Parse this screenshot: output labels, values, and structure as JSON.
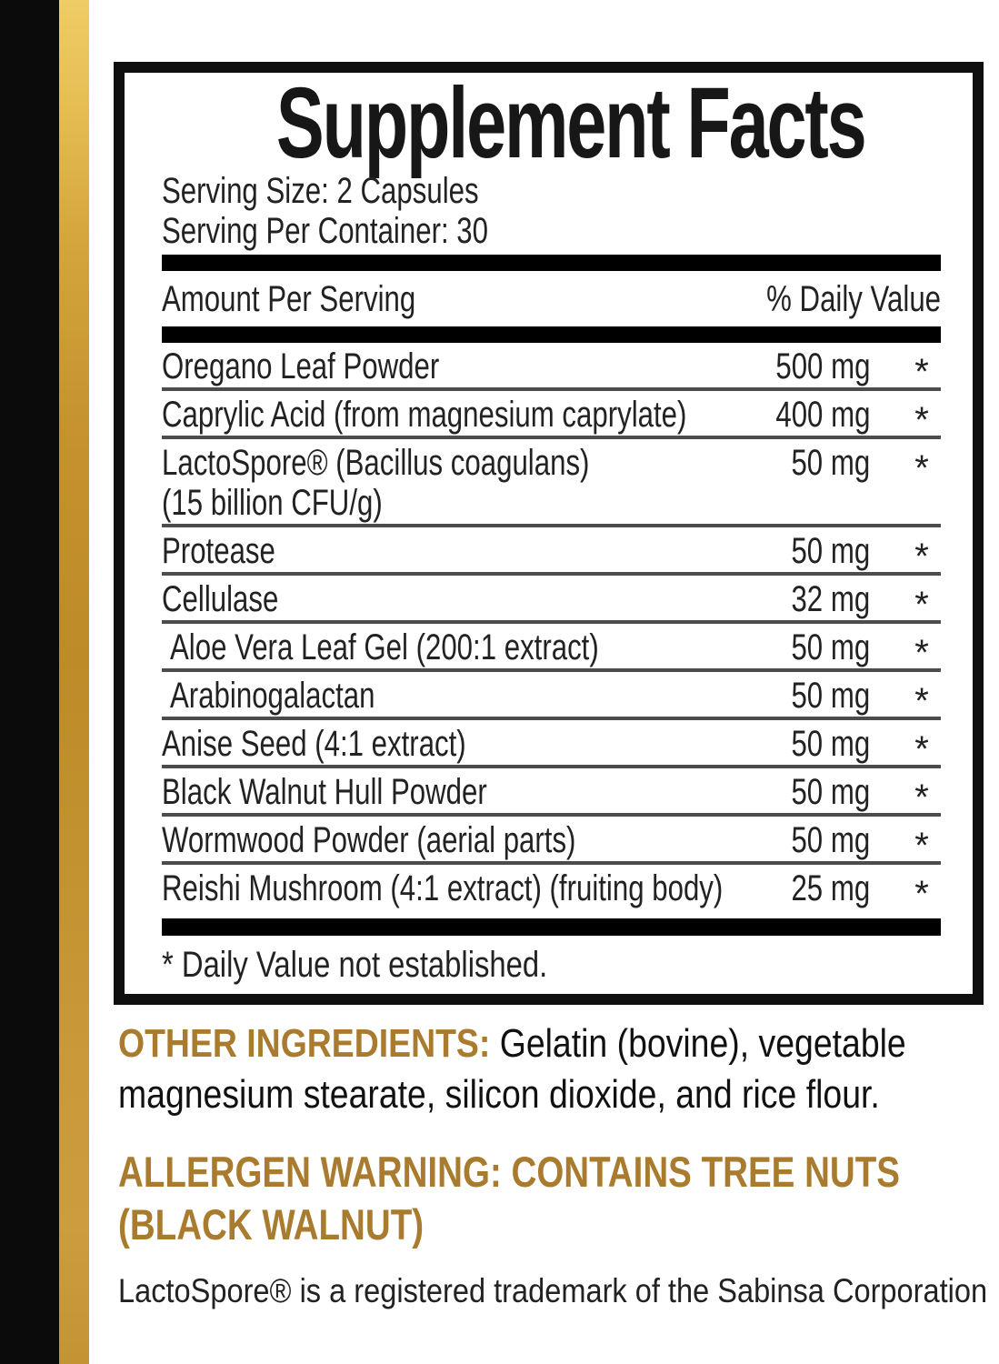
{
  "colors": {
    "accent_gold_text": "#a87b2e",
    "stripe_gold": "#c5922d",
    "stripe_black": "#0b0b0b",
    "rule_black": "#000000"
  },
  "panel": {
    "title": "Supplement Facts",
    "serving_size": "Serving Size: 2 Capsules",
    "servings_per_container": "Serving Per Container: 30",
    "header": {
      "left": "Amount Per Serving",
      "right": "% Daily Value"
    },
    "rows": [
      {
        "name": "Oregano Leaf Powder",
        "amount": "500 mg",
        "dv": "*"
      },
      {
        "name": "Caprylic Acid (from magnesium caprylate)",
        "amount": "400 mg",
        "dv": "*"
      },
      {
        "name": "LactoSpore® (Bacillus coagulans)",
        "name_line2": "(15 billion CFU/g)",
        "amount": "50 mg",
        "dv": "*"
      },
      {
        "name": "Protease",
        "amount": "50 mg",
        "dv": "*"
      },
      {
        "name": "Cellulase",
        "amount": "32 mg",
        "dv": "*"
      },
      {
        "name": "Aloe Vera Leaf Gel (200:1 extract)",
        "amount": "50 mg",
        "dv": "*"
      },
      {
        "name": "Arabinogalactan",
        "amount": "50 mg",
        "dv": "*"
      },
      {
        "name": "Anise Seed (4:1 extract)",
        "amount": "50 mg",
        "dv": "*"
      },
      {
        "name": "Black Walnut Hull Powder",
        "amount": "50 mg",
        "dv": "*"
      },
      {
        "name": "Wormwood Powder (aerial parts)",
        "amount": "50 mg",
        "dv": "*"
      },
      {
        "name": "Reishi Mushroom (4:1 extract) (fruiting body)",
        "amount": "25 mg",
        "dv": "*"
      }
    ],
    "footnote": "* Daily Value not established."
  },
  "other_ingredients": {
    "label": "OTHER INGREDIENTS:",
    "line1_rest": " Gelatin (bovine), vegetable",
    "line2": "magnesium stearate, silicon dioxide, and rice flour."
  },
  "allergen_warning": {
    "line1": "ALLERGEN WARNING: CONTAINS TREE NUTS",
    "line2": "(BLACK WALNUT)"
  },
  "trademark_note": "LactoSpore® is a registered trademark of the Sabinsa Corporation"
}
